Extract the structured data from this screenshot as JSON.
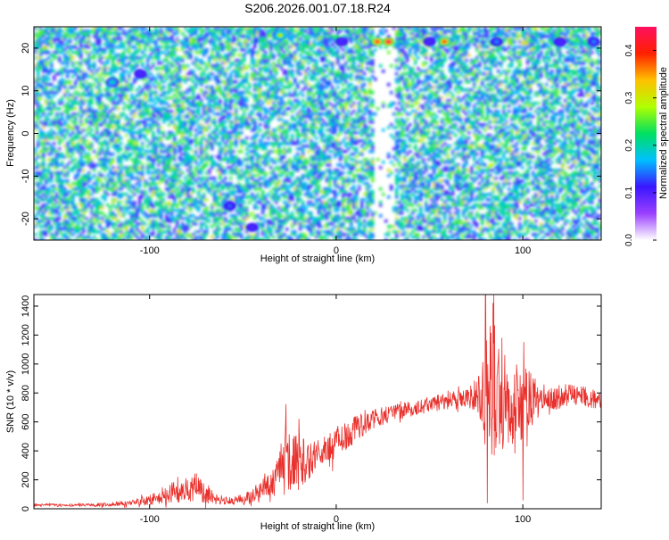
{
  "figure": {
    "title": "S206.2026.001.07.18.R24"
  },
  "chart_data": [
    {
      "type": "heatmap",
      "xlabel": "Height of straight line (km)",
      "ylabel": "Frequency (Hz)",
      "xlim": [
        -162,
        142
      ],
      "ylim": [
        -25,
        25
      ],
      "x_ticks": [
        -100,
        0,
        100
      ],
      "y_ticks": [
        -20,
        -10,
        0,
        10,
        20
      ],
      "colorbar": {
        "label": "Normalized spectral amplitude",
        "range": [
          0.0,
          0.45
        ],
        "ticks": [
          0.0,
          0.1,
          0.2,
          0.3,
          0.4
        ],
        "colors": [
          "#ffffff",
          "#9a40ff",
          "#3a16ff",
          "#00c0ff",
          "#00e060",
          "#b0ff00",
          "#ffc000",
          "#ff2000",
          "#ff1060"
        ]
      },
      "gap_column_km": [
        22,
        29
      ],
      "hotspots": [
        {
          "x": -120,
          "y": 12,
          "value": 0.2
        },
        {
          "x": -105,
          "y": 14,
          "value": 0.12
        },
        {
          "x": -57,
          "y": -17,
          "value": 0.14
        },
        {
          "x": -45,
          "y": -22,
          "value": 0.12
        },
        {
          "x": -30,
          "y": 23,
          "value": 0.3
        },
        {
          "x": 3,
          "y": 21.5,
          "value": 0.12
        },
        {
          "x": 22,
          "y": 21.5,
          "value": 0.42
        },
        {
          "x": 28,
          "y": 21.5,
          "value": 0.45
        },
        {
          "x": 50,
          "y": 21.5,
          "value": 0.12
        },
        {
          "x": 58,
          "y": 21.5,
          "value": 0.4
        },
        {
          "x": 86,
          "y": 21.5,
          "value": 0.15
        },
        {
          "x": 120,
          "y": 21.5,
          "value": 0.12
        },
        {
          "x": 138,
          "y": 21.5,
          "value": 0.15
        }
      ]
    },
    {
      "type": "line",
      "xlabel": "Height of straight line (km)",
      "ylabel": "SNR (10 * v/v)",
      "xlim": [
        -162,
        142
      ],
      "ylim": [
        0,
        1480
      ],
      "x_ticks": [
        -100,
        0,
        100
      ],
      "y_ticks": [
        0,
        200,
        400,
        600,
        800,
        1000,
        1200,
        1400
      ],
      "color": "#e8302c",
      "envelope": [
        {
          "x": -162,
          "base": 25,
          "noise": 10
        },
        {
          "x": -130,
          "base": 25,
          "noise": 10
        },
        {
          "x": -110,
          "base": 40,
          "noise": 20
        },
        {
          "x": -95,
          "base": 70,
          "noise": 45
        },
        {
          "x": -85,
          "base": 120,
          "noise": 80
        },
        {
          "x": -75,
          "base": 140,
          "noise": 90
        },
        {
          "x": -65,
          "base": 70,
          "noise": 40
        },
        {
          "x": -55,
          "base": 50,
          "noise": 25
        },
        {
          "x": -45,
          "base": 90,
          "noise": 50
        },
        {
          "x": -35,
          "base": 170,
          "noise": 90
        },
        {
          "x": -27,
          "base": 320,
          "noise": 220
        },
        {
          "x": -18,
          "base": 320,
          "noise": 180
        },
        {
          "x": -10,
          "base": 380,
          "noise": 90
        },
        {
          "x": 0,
          "base": 440,
          "noise": 110
        },
        {
          "x": 10,
          "base": 540,
          "noise": 100
        },
        {
          "x": 20,
          "base": 620,
          "noise": 70
        },
        {
          "x": 30,
          "base": 660,
          "noise": 55
        },
        {
          "x": 50,
          "base": 720,
          "noise": 55
        },
        {
          "x": 70,
          "base": 770,
          "noise": 60
        },
        {
          "x": 77,
          "base": 790,
          "noise": 150
        },
        {
          "x": 82,
          "base": 760,
          "noise": 520
        },
        {
          "x": 90,
          "base": 740,
          "noise": 330
        },
        {
          "x": 100,
          "base": 720,
          "noise": 280
        },
        {
          "x": 110,
          "base": 760,
          "noise": 100
        },
        {
          "x": 130,
          "base": 790,
          "noise": 70
        },
        {
          "x": 142,
          "base": 740,
          "noise": 60
        }
      ],
      "peaks": [
        {
          "x": -27,
          "y": 720
        },
        {
          "x": -20,
          "y": 620
        },
        {
          "x": 80,
          "y": 1480
        },
        {
          "x": 81,
          "y": 40
        },
        {
          "x": 84,
          "y": 1420
        },
        {
          "x": 100,
          "y": 60
        },
        {
          "x": 100.5,
          "y": 1150
        }
      ]
    }
  ]
}
